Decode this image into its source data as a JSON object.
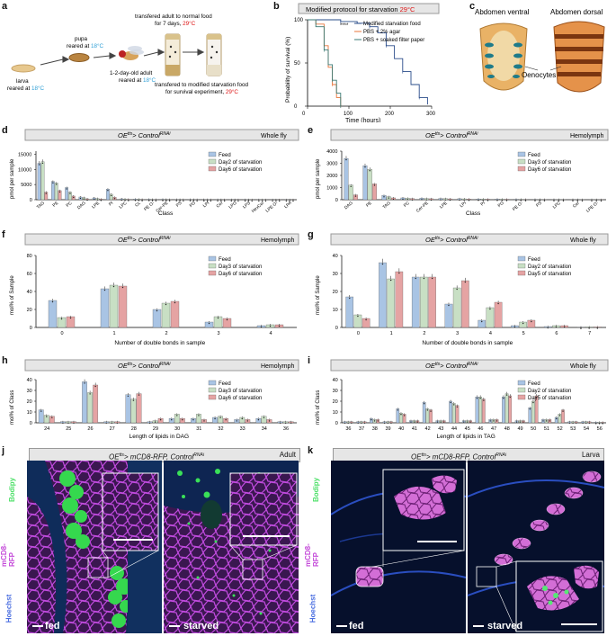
{
  "panel_labels": [
    "a",
    "b",
    "c",
    "d",
    "e",
    "f",
    "g",
    "h",
    "i",
    "j",
    "k"
  ],
  "colors": {
    "feed": "#a9c4e4",
    "day2": "#c8dfc4",
    "day6": "#e5a3a3",
    "magenta": "#d94bd9",
    "green": "#4fe06a",
    "blue": "#2f53c8",
    "starve_orange": "#e8753a"
  },
  "a": {
    "larva": [
      "larva",
      "reared at ",
      "18°C"
    ],
    "pupa": [
      "pupa",
      "reared at ",
      "18°C"
    ],
    "adult": [
      "1-2-day-old adult",
      "reared at ",
      "18°C"
    ],
    "transfer1": [
      "transfered adult to normal food",
      "for 7 days, ",
      "29°C"
    ],
    "transfer2": [
      "transfered to modified starvation food",
      "for survival experiment, ",
      "29°C"
    ]
  },
  "b": {
    "title": "Modified protocol for starvation",
    "title_temp": "29°C",
    "ylabel": "Probability of survival (%)",
    "xlabel": "Time (hours)",
    "sig": "****",
    "legend": [
      "Modified starvation food",
      "PBS + 2% agar",
      "PBS + soaked filter paper"
    ],
    "xticks": [
      "0",
      "100",
      "200",
      "300"
    ],
    "yticks": [
      "0",
      "50",
      "100"
    ]
  },
  "c": {
    "ventral": "Abdomen ventral",
    "dorsal": "Abdomen dorsal",
    "oenocytes": "Oenocytes"
  },
  "d": {
    "title": "OE",
    "title_sup": "tts",
    "title_mid": "> Control",
    "title_sup2": "RNAi",
    "tissue": "Whole fly",
    "legend": [
      "Feed",
      "Day2 of starvation",
      "Day6 of starvation"
    ],
    "ylabel": "pmol per sample",
    "xlabel": "Class",
    "yticks": [
      "0",
      "5000",
      "10000",
      "15000"
    ]
  },
  "e": {
    "title": "OE",
    "title_sup": "tts",
    "title_mid": "> Control",
    "title_sup2": "RNAi",
    "tissue": "Hemolymph",
    "legend": [
      "Feed",
      "Day3 of starvation",
      "Day6 of starvation"
    ],
    "ylabel": "pmol per sample",
    "xlabel": "Class",
    "yticks": [
      "0",
      "1000",
      "2000",
      "3000",
      "4000"
    ]
  },
  "f": {
    "title": "OE",
    "title_sup": "tts",
    "title_mid": "> Control",
    "title_sup2": "RNAi",
    "tissue": "Hemolymph",
    "legend": [
      "Feed",
      "Day3 of starvation",
      "Day6 of starvation"
    ],
    "ylabel": "mol% of Sample",
    "xlabel": "Number of double bonds in sample",
    "yticks": [
      "0",
      "20",
      "40",
      "60",
      "80"
    ]
  },
  "g": {
    "title": "OE",
    "title_sup": "tts",
    "title_mid": "> Control",
    "title_sup2": "RNAi",
    "tissue": "Whole fly",
    "legend": [
      "Feed",
      "Day2 of starvation",
      "Day5 of starvation"
    ],
    "ylabel": "mol% of Sample",
    "xlabel": "Number of double bonds in sample",
    "yticks": [
      "0",
      "10",
      "20",
      "30",
      "40"
    ]
  },
  "h": {
    "title": "OE",
    "title_sup": "tts",
    "title_mid": "> Control",
    "title_sup2": "RNAi",
    "tissue": "Hemolymph",
    "legend": [
      "Feed",
      "Day3 of starvation",
      "Day6 of starvation"
    ],
    "ylabel": "mol% of Class",
    "xlabel": "Length of lipids in DAG",
    "yticks": [
      "0",
      "10",
      "20",
      "30",
      "40"
    ]
  },
  "i": {
    "title": "OE",
    "title_sup": "tts",
    "title_mid": "> Control",
    "title_sup2": "RNAi",
    "tissue": "Whole fly",
    "legend": [
      "Feed",
      "Day2 of starvation",
      "Day5 of starvation"
    ],
    "ylabel": "mol% of Class",
    "xlabel": "Length of lipids in TAG",
    "yticks": [
      "0",
      "10",
      "20",
      "30",
      "40"
    ]
  },
  "j": {
    "title": "OE",
    "title_sup": "tts",
    "title_mid": "> mCD8-RFP, Control",
    "title_sup2": "RNAi",
    "stage": "Adult",
    "stains": [
      "Bodipy",
      "mCD8-RFP",
      "Hoechst"
    ],
    "left": "fed",
    "right": "starved"
  },
  "k": {
    "title": "OE",
    "title_sup": "tts",
    "title_mid": "> mCD8-RFP, Control",
    "title_sup2": "RNAi",
    "stage": "Larva",
    "stains": [
      "Bodipy",
      "mCD8-RFP",
      "Hoechst"
    ],
    "left": "fed",
    "right": "starved"
  },
  "chart_data": [
    {
      "panel": "b",
      "type": "line",
      "title": "Modified protocol for starvation",
      "xlabel": "Time (hours)",
      "ylabel": "Probability of survival (%)",
      "xlim": [
        0,
        300
      ],
      "ylim": [
        0,
        100
      ],
      "series": [
        {
          "name": "Modified starvation food",
          "x": [
            0,
            40,
            80,
            120,
            150,
            170,
            190,
            210,
            230,
            250,
            270,
            290
          ],
          "y": [
            100,
            100,
            98,
            96,
            92,
            85,
            70,
            55,
            40,
            25,
            10,
            2
          ]
        },
        {
          "name": "PBS + 2% agar",
          "x": [
            0,
            20,
            40,
            50,
            60,
            70,
            80
          ],
          "y": [
            100,
            95,
            70,
            45,
            25,
            10,
            0
          ]
        },
        {
          "name": "PBS + soaked filter paper",
          "x": [
            0,
            20,
            40,
            50,
            60,
            70,
            80
          ],
          "y": [
            100,
            92,
            65,
            48,
            30,
            15,
            0
          ]
        }
      ]
    },
    {
      "panel": "d",
      "type": "bar",
      "title": "OEtts> ControlRNAi Whole fly",
      "xlabel": "Class",
      "ylabel": "pmol per sample",
      "ylim": [
        0,
        16000
      ],
      "categories": [
        "TAG",
        "PE",
        "PC",
        "DAG",
        "LPE",
        "PI",
        "LPC",
        "CL",
        "PE O-",
        "Cer-PE",
        "PS",
        "PG",
        "LPI",
        "Cer",
        "LPG",
        "LPS",
        "HexCer",
        "LPE O-",
        "LPA"
      ],
      "series": [
        {
          "name": "Feed",
          "values": [
            12000,
            6000,
            4000,
            900,
            600,
            3500,
            300,
            200,
            150,
            150,
            100,
            100,
            80,
            60,
            50,
            40,
            30,
            20,
            20
          ]
        },
        {
          "name": "Day2 of starvation",
          "values": [
            12500,
            5500,
            2500,
            700,
            400,
            1800,
            250,
            180,
            120,
            120,
            90,
            90,
            70,
            55,
            45,
            35,
            28,
            18,
            18
          ]
        },
        {
          "name": "Day6 of starvation",
          "values": [
            2500,
            3000,
            1200,
            300,
            200,
            800,
            150,
            120,
            90,
            90,
            70,
            70,
            50,
            40,
            30,
            25,
            20,
            15,
            15
          ]
        }
      ]
    },
    {
      "panel": "e",
      "type": "bar",
      "title": "OEtts> ControlRNAi Hemolymph",
      "xlabel": "Class",
      "ylabel": "pmol per sample",
      "ylim": [
        0,
        4000
      ],
      "categories": [
        "DAG",
        "PE",
        "TAG",
        "PC",
        "Cer-PE",
        "LPE",
        "LPI",
        "PI",
        "PG",
        "PE O-",
        "PS",
        "LPC",
        "Cer",
        "LPE O-"
      ],
      "series": [
        {
          "name": "Feed",
          "values": [
            3400,
            2800,
            350,
            150,
            120,
            100,
            80,
            60,
            50,
            40,
            30,
            25,
            20,
            15
          ]
        },
        {
          "name": "Day3 of starvation",
          "values": [
            1200,
            2500,
            250,
            120,
            100,
            90,
            70,
            55,
            45,
            35,
            28,
            22,
            18,
            12
          ]
        },
        {
          "name": "Day6 of starvation",
          "values": [
            400,
            1300,
            150,
            90,
            80,
            70,
            60,
            45,
            40,
            30,
            25,
            20,
            15,
            10
          ]
        }
      ]
    },
    {
      "panel": "f",
      "type": "bar",
      "title": "OEtts> ControlRNAi Hemolymph",
      "xlabel": "Number of double bonds in sample",
      "ylabel": "mol% of Sample",
      "ylim": [
        0,
        80
      ],
      "categories": [
        "0",
        "1",
        "2",
        "3",
        "4"
      ],
      "series": [
        {
          "name": "Feed",
          "values": [
            30,
            43,
            20,
            6,
            2
          ]
        },
        {
          "name": "Day3 of starvation",
          "values": [
            11,
            47,
            27,
            12,
            3
          ]
        },
        {
          "name": "Day6 of starvation",
          "values": [
            12,
            46,
            29,
            10,
            3
          ]
        }
      ]
    },
    {
      "panel": "g",
      "type": "bar",
      "title": "OEtts> ControlRNAi Whole fly",
      "xlabel": "Number of double bonds in sample",
      "ylabel": "mol% of Sample",
      "ylim": [
        0,
        40
      ],
      "categories": [
        "0",
        "1",
        "2",
        "3",
        "4",
        "5",
        "6",
        "7"
      ],
      "series": [
        {
          "name": "Feed",
          "values": [
            17,
            36,
            28,
            13,
            4,
            1,
            0.5,
            0.2
          ]
        },
        {
          "name": "Day2 of starvation",
          "values": [
            7,
            27,
            28,
            22,
            11,
            3,
            1,
            0.3
          ]
        },
        {
          "name": "Day5 of starvation",
          "values": [
            5,
            31,
            28,
            26,
            14,
            4,
            1,
            0.3
          ]
        }
      ]
    },
    {
      "panel": "h",
      "type": "bar",
      "title": "OEtts> ControlRNAi Hemolymph",
      "xlabel": "Length of lipids in DAG",
      "ylabel": "mol% of Class",
      "ylim": [
        0,
        40
      ],
      "categories": [
        "24",
        "25",
        "26",
        "27",
        "28",
        "29",
        "30",
        "31",
        "32",
        "33",
        "34",
        "36"
      ],
      "series": [
        {
          "name": "Feed",
          "values": [
            12,
            1,
            38,
            1,
            26,
            1,
            4,
            4,
            5,
            3,
            4,
            1
          ]
        },
        {
          "name": "Day3 of starvation",
          "values": [
            7,
            1,
            28,
            1,
            22,
            2,
            8,
            8,
            6,
            5,
            6,
            1
          ]
        },
        {
          "name": "Day6 of starvation",
          "values": [
            6,
            1,
            35,
            1,
            27,
            4,
            4,
            3,
            4,
            3,
            3,
            1
          ]
        }
      ]
    },
    {
      "panel": "i",
      "type": "bar",
      "title": "OEtts> ControlRNAi Whole fly",
      "xlabel": "Length of lipids in TAG",
      "ylabel": "mol% of Class",
      "ylim": [
        0,
        40
      ],
      "categories": [
        "36",
        "37",
        "38",
        "39",
        "40",
        "41",
        "42",
        "43",
        "44",
        "45",
        "46",
        "47",
        "48",
        "49",
        "50",
        "51",
        "52",
        "53",
        "54",
        "56"
      ],
      "series": [
        {
          "name": "Feed",
          "values": [
            1,
            1,
            4,
            1,
            13,
            2,
            19,
            2,
            20,
            2,
            24,
            3,
            24,
            2,
            14,
            3,
            5,
            1,
            1,
            0.5
          ]
        },
        {
          "name": "Day2 of starvation",
          "values": [
            1,
            1,
            3,
            1,
            9,
            2,
            13,
            2,
            18,
            2,
            24,
            3,
            27,
            2,
            20,
            3,
            8,
            1,
            1,
            0.5
          ]
        },
        {
          "name": "Day5 of starvation",
          "values": [
            1,
            1,
            3,
            1,
            8,
            2,
            12,
            2,
            16,
            2,
            22,
            3,
            25,
            2,
            25,
            3,
            12,
            1,
            1,
            0.5
          ]
        }
      ]
    }
  ]
}
